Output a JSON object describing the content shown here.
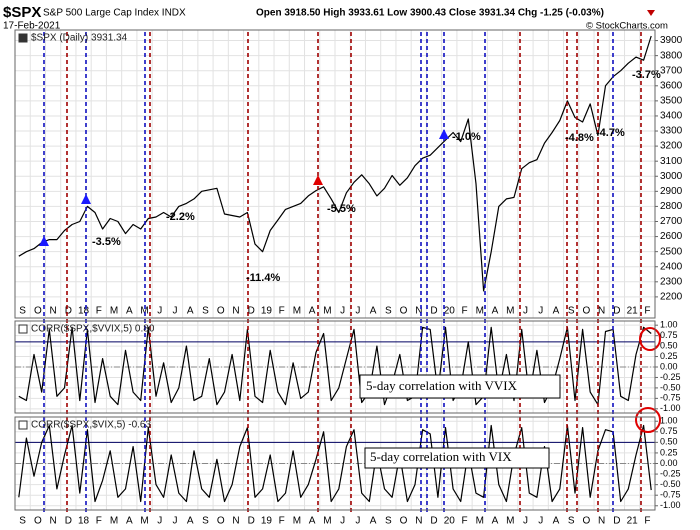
{
  "header": {
    "symbol": "$SPX",
    "name": "S&P 500 Large Cap Index INDX",
    "date": "17-Feb-2021",
    "quote": "Open 3918.50 High 3933.61 Low 3900.43 Close 3931.34 Chg -1.25 (-0.03%)",
    "credit": "© StockCharts.com"
  },
  "chart_data": [
    {
      "type": "line",
      "legend": "$SPX (Daily) 3931.34",
      "color": "#000000",
      "annotations": [
        "-3.5%",
        "-2.2%",
        "-11.4%",
        "-5.5%",
        "-1.0%",
        "-4.8%",
        "-4.7%",
        "-3.7%"
      ],
      "categories": [
        "S",
        null,
        "O",
        null,
        "N",
        null,
        "D",
        null,
        "18",
        null,
        "F",
        null,
        "M",
        null,
        "A",
        null,
        "M",
        null,
        "J",
        null,
        "J",
        null,
        "A",
        null,
        "S",
        null,
        "O",
        null,
        "N",
        null,
        "D",
        null,
        "19",
        null,
        "F",
        null,
        "M",
        null,
        "A",
        null,
        "M",
        null,
        "J",
        null,
        "J",
        null,
        "A",
        null,
        "S",
        null,
        "O",
        null,
        "N",
        null,
        "D",
        null,
        "20",
        null,
        "F",
        null,
        "M",
        null,
        "A",
        null,
        "M",
        null,
        "J",
        null,
        "J",
        null,
        "A",
        null,
        "S",
        null,
        "O",
        null,
        "N",
        null,
        "D",
        null,
        "21",
        null,
        "F",
        null
      ],
      "values": [
        2470,
        2500,
        2520,
        2560,
        2580,
        2580,
        2640,
        2680,
        2700,
        2800,
        2760,
        2650,
        2720,
        2700,
        2620,
        2680,
        2650,
        2720,
        2730,
        2760,
        2730,
        2800,
        2820,
        2850,
        2900,
        2910,
        2920,
        2750,
        2740,
        2730,
        2760,
        2550,
        2500,
        2640,
        2710,
        2780,
        2800,
        2820,
        2870,
        2905,
        2930,
        2850,
        2760,
        2890,
        2960,
        3010,
        2950,
        2870,
        2920,
        3005,
        2940,
        2990,
        3070,
        3120,
        3140,
        3190,
        3240,
        3290,
        3230,
        3380,
        2950,
        2240,
        2500,
        2800,
        2850,
        2860,
        3050,
        3090,
        3110,
        3220,
        3290,
        3370,
        3500,
        3390,
        3360,
        3480,
        3270,
        3600,
        3660,
        3700,
        3750,
        3790,
        3770,
        3930
      ],
      "ylim": [
        2060,
        3970
      ],
      "yticks": [
        2200,
        2300,
        2400,
        2500,
        2600,
        2700,
        2800,
        2900,
        3000,
        3100,
        3200,
        3300,
        3400,
        3500,
        3600,
        3700,
        3800,
        3900
      ]
    },
    {
      "type": "line",
      "legend": "CORR($SPX,$VVIX,5) 0.80",
      "annotation": "5-day correlation with VVIX",
      "color": "#000000",
      "values": [
        -0.7,
        -0.8,
        0.3,
        -0.6,
        0.9,
        -0.7,
        -0.5,
        0.95,
        -0.8,
        0.9,
        -0.85,
        0.2,
        -0.7,
        -0.9,
        0.4,
        -0.6,
        -0.8,
        0.95,
        -0.7,
        0.1,
        -0.85,
        -0.5,
        0.5,
        -0.8,
        -0.7,
        0.2,
        -0.9,
        -0.6,
        0.3,
        -0.8,
        0.9,
        -0.7,
        -0.85,
        0.4,
        -0.6,
        -0.9,
        0.1,
        -0.75,
        -0.6,
        0.35,
        0.8,
        -0.8,
        -0.5,
        0.2,
        0.9,
        -0.85,
        -0.6,
        0.5,
        -0.9,
        -0.4,
        0.3,
        -0.8,
        -0.7,
        0.95,
        0.9,
        -0.6,
        0.95,
        -0.8,
        -0.5,
        0.6,
        -0.9,
        -0.7,
        0.95,
        -0.6,
        0.3,
        -0.8,
        0.9,
        -0.7,
        0.4,
        -0.85,
        -0.5,
        0.2,
        0.95,
        -0.8,
        0.9,
        -0.6,
        -0.9,
        0.85,
        0.9,
        -0.7,
        -0.8,
        0.3,
        0.95,
        0.8
      ],
      "ylim": [
        -1.1,
        1.1
      ],
      "yticks": [
        {
          "value": 1,
          "label": "1.00"
        },
        {
          "value": 0.75,
          "label": "0.75"
        },
        {
          "value": 0.5,
          "label": "0.50"
        },
        {
          "value": 0.25,
          "label": "0.25"
        },
        {
          "value": 0,
          "label": "0.00"
        },
        {
          "value": -0.25,
          "label": "-0.25"
        },
        {
          "value": -0.5,
          "label": "-0.50"
        },
        {
          "value": -0.75,
          "label": "-0.75"
        },
        {
          "value": -1,
          "label": "-1.00"
        }
      ],
      "hlines": [
        {
          "value": 0.6,
          "style": "solid"
        },
        {
          "value": 0,
          "style": "dashed"
        }
      ]
    },
    {
      "type": "line",
      "legend": "CORR($SPX,$VIX,5) -0.63",
      "annotation": "5-day correlation with VIX",
      "color": "#000000",
      "categories": [
        "S",
        null,
        "O",
        null,
        "N",
        null,
        "D",
        null,
        "18",
        null,
        "F",
        null,
        "M",
        null,
        "A",
        null,
        "M",
        null,
        "J",
        null,
        "J",
        null,
        "A",
        null,
        "S",
        null,
        "O",
        null,
        "N",
        null,
        "D",
        null,
        "19",
        null,
        "F",
        null,
        "M",
        null,
        "A",
        null,
        "M",
        null,
        "J",
        null,
        "J",
        null,
        "A",
        null,
        "S",
        null,
        "O",
        null,
        "N",
        null,
        "D",
        null,
        "20",
        null,
        "F",
        null,
        "M",
        null,
        "A",
        null,
        "M",
        null,
        "J",
        null,
        "J",
        null,
        "A",
        null,
        "S",
        null,
        "O",
        null,
        "N",
        null,
        "D",
        null,
        "21",
        null,
        "F",
        null
      ],
      "values": [
        -0.8,
        0.6,
        -0.3,
        0.5,
        0.9,
        -0.6,
        0.2,
        0.9,
        -0.7,
        0.8,
        -0.9,
        -0.4,
        0.3,
        -0.8,
        -0.6,
        0.4,
        -0.9,
        0.85,
        -0.5,
        -0.8,
        0.2,
        -0.7,
        -0.9,
        0.3,
        -0.6,
        -0.8,
        0.1,
        -0.9,
        -0.5,
        0.4,
        0.85,
        -0.8,
        -0.6,
        0.2,
        -0.9,
        -0.7,
        0.3,
        -0.8,
        -0.5,
        0.1,
        0.75,
        -0.9,
        -0.6,
        0.4,
        0.8,
        -0.7,
        -0.9,
        0.3,
        -0.6,
        -0.8,
        0.2,
        -0.9,
        -0.5,
        0.8,
        0.7,
        -0.8,
        0.85,
        -0.6,
        -0.9,
        0.3,
        -0.7,
        -0.8,
        0.9,
        -0.5,
        -0.9,
        0.2,
        0.85,
        -0.7,
        -0.8,
        0.4,
        -0.9,
        -0.6,
        0.9,
        -0.7,
        0.85,
        -0.8,
        0.3,
        0.8,
        0.75,
        -0.9,
        -0.6,
        0.2,
        0.9,
        -0.63
      ],
      "ylim": [
        -1.1,
        1.1
      ],
      "yticks": [
        {
          "value": 1,
          "label": "1.00"
        },
        {
          "value": 0.75,
          "label": "0.75"
        },
        {
          "value": 0.5,
          "label": "0.50"
        },
        {
          "value": 0.25,
          "label": "0.25"
        },
        {
          "value": 0,
          "label": "0.00"
        },
        {
          "value": -0.25,
          "label": "-0.25"
        },
        {
          "value": -0.5,
          "label": "-0.50"
        },
        {
          "value": -0.75,
          "label": "-0.75"
        },
        {
          "value": -1,
          "label": "-1.00"
        }
      ],
      "hlines": [
        {
          "value": 0.5,
          "style": "solid"
        },
        {
          "value": 0,
          "style": "dashed"
        }
      ]
    }
  ]
}
